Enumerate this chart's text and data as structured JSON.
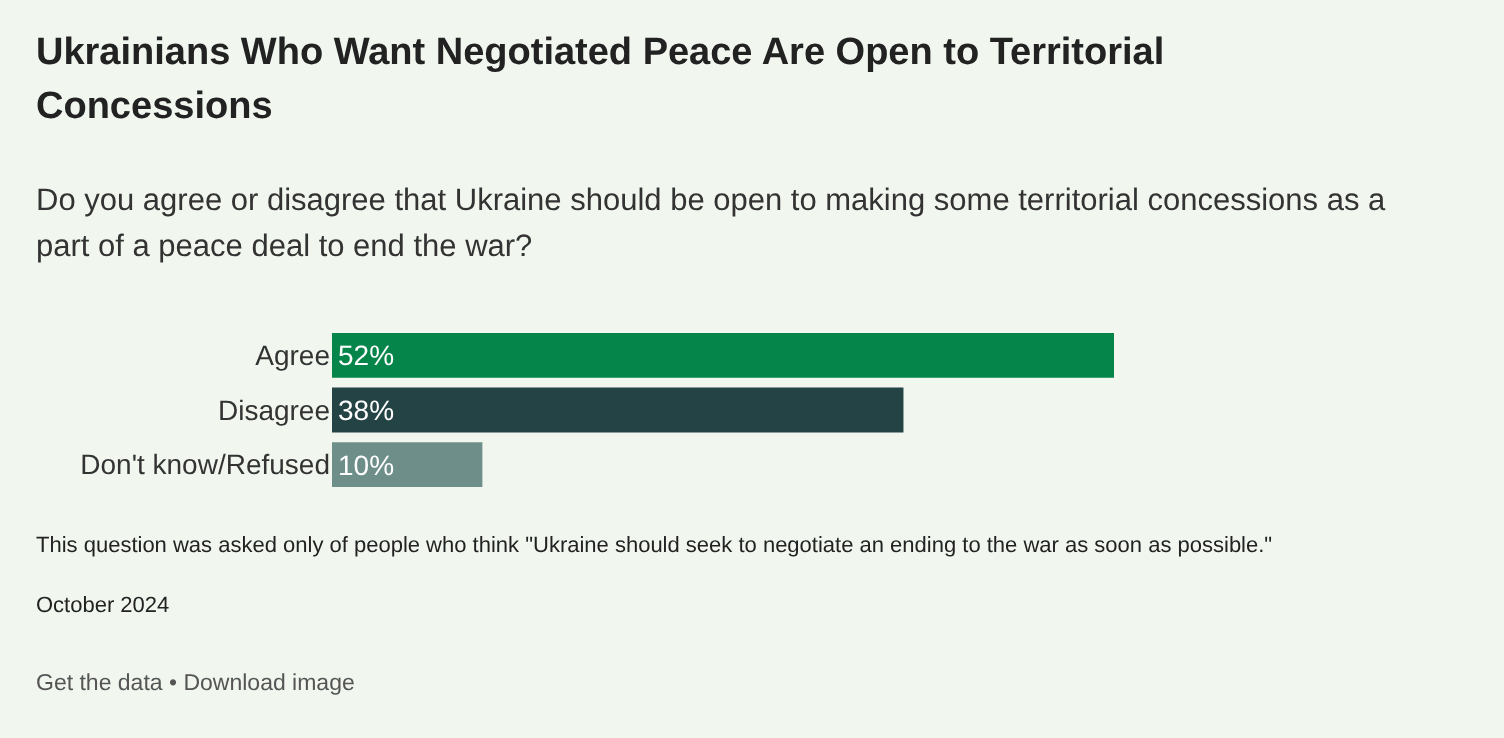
{
  "chart_data": {
    "type": "bar",
    "orientation": "horizontal",
    "title": "Ukrainians Who Want Negotiated Peace Are Open to Territorial Concessions",
    "subtitle": "Do you agree or disagree that Ukraine should be open to making some territorial concessions as a part of a peace deal to end the war?",
    "categories": [
      "Agree",
      "Disagree",
      "Don't know/Refused"
    ],
    "values": [
      52,
      38,
      10
    ],
    "colors": [
      "#05854a",
      "#244345",
      "#6e8e89"
    ],
    "value_labels": [
      "52%",
      "38%",
      "10%"
    ],
    "grid": false,
    "legend": false,
    "annotations": [
      "This question was asked only of people who think \"Ukraine should seek to negotiate an ending to the war as soon as possible.\"",
      "October 2024",
      "Get the data • Download image"
    ]
  }
}
